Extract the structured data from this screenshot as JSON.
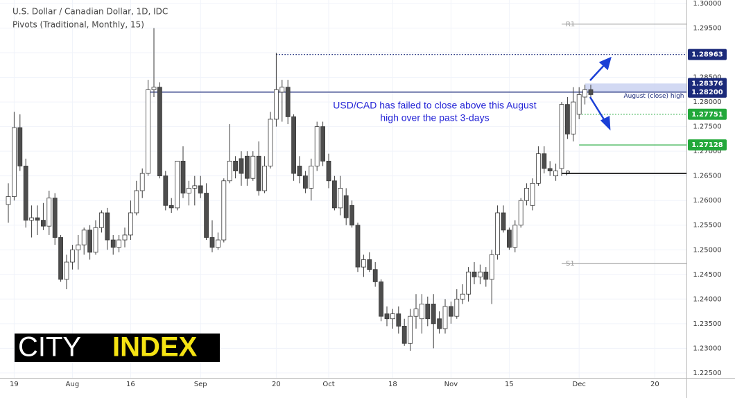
{
  "chart_data": {
    "type": "candlestick",
    "title": "U.S. Dollar / Canadian Dollar, 1D, IDC",
    "subtitle": "Pivots (Traditional, Monthly, 15)",
    "up_color": "#ffffff",
    "down_color": "#4d4d4d",
    "wick_color": "#3a3a3a",
    "x": [
      0,
      1,
      2,
      3,
      4,
      5,
      6,
      7,
      8,
      9,
      10,
      11,
      12,
      13,
      14,
      15,
      16,
      17,
      18,
      19,
      20,
      21,
      22,
      23,
      24,
      25,
      26,
      27,
      28,
      29,
      30,
      31,
      32,
      33,
      34,
      35,
      36,
      37,
      38,
      39,
      40,
      41,
      42,
      43,
      44,
      45,
      46,
      47,
      48,
      49,
      50,
      51,
      52,
      53,
      54,
      55,
      56,
      57,
      58,
      59,
      60,
      61,
      62,
      63,
      64,
      65,
      66,
      67,
      68,
      69,
      70,
      71,
      72,
      73,
      74,
      75,
      76,
      77,
      78,
      79,
      80,
      81,
      82,
      83,
      84,
      85,
      86,
      87,
      88,
      89,
      90,
      91,
      92,
      93,
      94,
      95,
      96,
      97,
      98,
      99,
      100
    ],
    "open": [
      1.2592,
      1.2608,
      1.2748,
      1.267,
      1.256,
      1.2565,
      1.256,
      1.2548,
      1.2605,
      1.2525,
      1.244,
      1.2475,
      1.25,
      1.251,
      1.254,
      1.2495,
      1.2545,
      1.2575,
      1.252,
      1.2505,
      1.252,
      1.253,
      1.2575,
      1.262,
      1.2655,
      1.2825,
      1.283,
      1.265,
      1.259,
      1.2585,
      1.268,
      1.2615,
      1.2625,
      1.263,
      1.2615,
      1.2525,
      1.2505,
      1.252,
      1.264,
      1.268,
      1.2685,
      1.269,
      1.2645,
      1.269,
      1.262,
      1.267,
      1.2765,
      1.282,
      1.283,
      1.277,
      1.267,
      1.265,
      1.2625,
      1.267,
      1.275,
      1.268,
      1.264,
      1.2585,
      1.261,
      1.259,
      1.255,
      1.2465,
      1.248,
      1.246,
      1.2435,
      1.237,
      1.236,
      1.237,
      1.2345,
      1.231,
      1.2365,
      1.236,
      1.239,
      1.239,
      1.236,
      1.234,
      1.2385,
      1.2365,
      1.24,
      1.241,
      1.2455,
      1.2445,
      1.2455,
      1.244,
      1.249,
      1.2575,
      1.254,
      1.2505,
      1.255,
      1.26,
      1.259,
      1.2635,
      1.2695,
      1.2665,
      1.265,
      1.2665,
      1.2795,
      1.2735,
      1.2775,
      1.281,
      1.2825
    ],
    "high": [
      1.2635,
      1.278,
      1.2775,
      1.2685,
      1.259,
      1.259,
      1.2595,
      1.262,
      1.2615,
      1.253,
      1.249,
      1.251,
      1.253,
      1.2545,
      1.255,
      1.256,
      1.258,
      1.2585,
      1.253,
      1.253,
      1.2545,
      1.26,
      1.264,
      1.2665,
      1.2845,
      1.295,
      1.284,
      1.266,
      1.2605,
      1.268,
      1.271,
      1.264,
      1.265,
      1.265,
      1.2635,
      1.256,
      1.2535,
      1.2645,
      1.2755,
      1.269,
      1.27,
      1.27,
      1.27,
      1.272,
      1.269,
      1.278,
      1.29,
      1.2845,
      1.2845,
      1.2775,
      1.269,
      1.266,
      1.2685,
      1.276,
      1.276,
      1.2695,
      1.265,
      1.265,
      1.2625,
      1.26,
      1.2555,
      1.249,
      1.2495,
      1.2475,
      1.244,
      1.2385,
      1.238,
      1.2385,
      1.236,
      1.238,
      1.241,
      1.241,
      1.2405,
      1.241,
      1.2375,
      1.24,
      1.2395,
      1.242,
      1.243,
      1.2465,
      1.2475,
      1.247,
      1.2465,
      1.25,
      1.259,
      1.259,
      1.2545,
      1.256,
      1.2605,
      1.2635,
      1.2645,
      1.271,
      1.271,
      1.268,
      1.2675,
      1.28,
      1.281,
      1.283,
      1.283,
      1.2835,
      1.2835
    ],
    "low": [
      1.2555,
      1.26,
      1.266,
      1.2545,
      1.2525,
      1.253,
      1.254,
      1.253,
      1.251,
      1.2435,
      1.242,
      1.246,
      1.246,
      1.249,
      1.248,
      1.249,
      1.2535,
      1.25,
      1.249,
      1.2495,
      1.2505,
      1.252,
      1.257,
      1.2605,
      1.265,
      1.281,
      1.2645,
      1.258,
      1.2575,
      1.258,
      1.2605,
      1.259,
      1.259,
      1.2605,
      1.252,
      1.2495,
      1.25,
      1.2515,
      1.2635,
      1.2645,
      1.263,
      1.263,
      1.264,
      1.261,
      1.2615,
      1.2665,
      1.275,
      1.276,
      1.2755,
      1.264,
      1.2635,
      1.2615,
      1.26,
      1.266,
      1.267,
      1.2625,
      1.258,
      1.257,
      1.255,
      1.2545,
      1.2455,
      1.2445,
      1.2455,
      1.2425,
      1.2355,
      1.2345,
      1.234,
      1.233,
      1.2305,
      1.2295,
      1.234,
      1.233,
      1.2345,
      1.23,
      1.233,
      1.233,
      1.235,
      1.236,
      1.239,
      1.2395,
      1.243,
      1.243,
      1.2425,
      1.239,
      1.248,
      1.2535,
      1.25,
      1.2495,
      1.2545,
      1.259,
      1.258,
      1.263,
      1.2655,
      1.265,
      1.264,
      1.265,
      1.2725,
      1.272,
      1.2765,
      1.2795,
      1.2805
    ],
    "close": [
      1.2608,
      1.2748,
      1.267,
      1.256,
      1.2565,
      1.256,
      1.2548,
      1.2605,
      1.2525,
      1.244,
      1.2475,
      1.25,
      1.251,
      1.254,
      1.2495,
      1.2545,
      1.2575,
      1.252,
      1.2505,
      1.252,
      1.253,
      1.2575,
      1.262,
      1.2655,
      1.2825,
      1.283,
      1.265,
      1.259,
      1.2585,
      1.268,
      1.2615,
      1.2625,
      1.263,
      1.2615,
      1.2525,
      1.2505,
      1.252,
      1.264,
      1.268,
      1.266,
      1.2655,
      1.2645,
      1.269,
      1.262,
      1.267,
      1.2765,
      1.2825,
      1.283,
      1.277,
      1.2655,
      1.265,
      1.2625,
      1.267,
      1.275,
      1.268,
      1.264,
      1.2585,
      1.2625,
      1.2565,
      1.255,
      1.2465,
      1.248,
      1.246,
      1.2435,
      1.2365,
      1.236,
      1.237,
      1.2345,
      1.231,
      1.2365,
      1.238,
      1.239,
      1.236,
      1.235,
      1.234,
      1.2385,
      1.2365,
      1.24,
      1.241,
      1.2455,
      1.2445,
      1.2455,
      1.244,
      1.249,
      1.2575,
      1.254,
      1.2505,
      1.255,
      1.26,
      1.2625,
      1.2635,
      1.2695,
      1.2665,
      1.266,
      1.266,
      1.2795,
      1.2735,
      1.28,
      1.2815,
      1.2825,
      1.2815
    ],
    "xlim": [
      -1.43,
      116.43
    ],
    "xticks": [
      {
        "value": 1,
        "label": "19"
      },
      {
        "value": 11,
        "label": "Aug"
      },
      {
        "value": 21,
        "label": "16"
      },
      {
        "value": 33,
        "label": "Sep"
      },
      {
        "value": 46,
        "label": "20"
      },
      {
        "value": 55,
        "label": "Oct"
      },
      {
        "value": 66,
        "label": "18"
      },
      {
        "value": 76,
        "label": "Nov"
      },
      {
        "value": 86,
        "label": "15"
      },
      {
        "value": 98,
        "label": "Dec"
      },
      {
        "value": 111,
        "label": "20"
      }
    ],
    "ylim": [
      1.224,
      1.3007
    ],
    "yticks": [
      {
        "value": 1.3,
        "label": "1.30000"
      },
      {
        "value": 1.295,
        "label": "1.29500"
      },
      {
        "value": 1.29,
        "label": "1.29000"
      },
      {
        "value": 1.285,
        "label": "1.28500"
      },
      {
        "value": 1.28,
        "label": "1.28000"
      },
      {
        "value": 1.275,
        "label": "1.27500"
      },
      {
        "value": 1.27,
        "label": "1.27000"
      },
      {
        "value": 1.265,
        "label": "1.26500"
      },
      {
        "value": 1.26,
        "label": "1.26000"
      },
      {
        "value": 1.255,
        "label": "1.25500"
      },
      {
        "value": 1.25,
        "label": "1.25000"
      },
      {
        "value": 1.245,
        "label": "1.24500"
      },
      {
        "value": 1.24,
        "label": "1.24000"
      },
      {
        "value": 1.235,
        "label": "1.23500"
      },
      {
        "value": 1.23,
        "label": "1.23000"
      },
      {
        "value": 1.225,
        "label": "1.22500"
      }
    ],
    "grid": true,
    "pivots": {
      "from": 95,
      "levels": [
        {
          "name": "R1",
          "value": 1.2958,
          "color": "#a6a6a6"
        },
        {
          "name": "P",
          "value": 1.2655,
          "color": "#000000"
        },
        {
          "name": "S1",
          "value": 1.2472,
          "color": "#a6a6a6"
        }
      ]
    },
    "levels": [
      {
        "value": 1.28963,
        "from": 46,
        "style": "dotted",
        "color": "#1b2a7a",
        "box": true
      },
      {
        "value": 1.28376,
        "from": 99,
        "style": "none",
        "color": "#1b2a7a",
        "box": true
      },
      {
        "value": 1.28229,
        "from": 99,
        "style": "none",
        "color": "#1b2a7a",
        "box": false
      },
      {
        "value": 1.282,
        "label": "1.28200",
        "from": 24,
        "style": "solid",
        "color": "#1b2a7a",
        "box": true
      },
      {
        "value": 1.27751,
        "from": 98,
        "style": "dotted",
        "color": "#22a83a",
        "box": true
      },
      {
        "value": 1.27128,
        "from": 98,
        "style": "solid",
        "color": "#22a83a",
        "box": true
      }
    ],
    "zone": {
      "levels": [
        1,
        3
      ],
      "from": 99,
      "color": "#c7d0f0"
    },
    "zone_label": "August (close) high",
    "annotation": {
      "lines": [
        "USD/CAD has failed to close above this August",
        "high over the past 3-days"
      ],
      "color": "#2424d6"
    },
    "logo": {
      "words": [
        "CITY",
        "INDEX"
      ]
    }
  }
}
